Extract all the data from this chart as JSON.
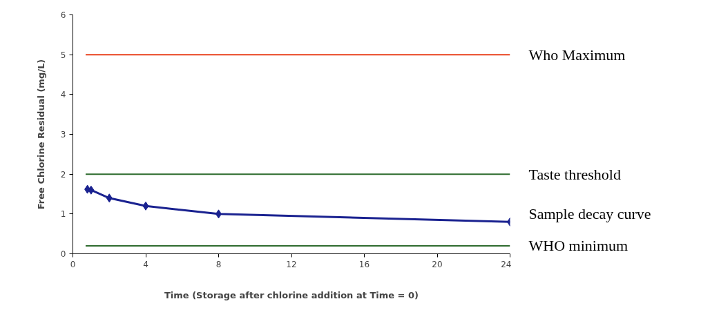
{
  "chart_data": {
    "type": "line",
    "xlabel": "Time (Storage after chlorine addition at Time = 0)",
    "ylabel": "Free Chlorine Residual (mg/L)",
    "xlim": [
      0,
      24
    ],
    "ylim": [
      0,
      6
    ],
    "xticks": [
      0,
      4,
      8,
      12,
      16,
      20,
      24
    ],
    "yticks": [
      0,
      1,
      2,
      3,
      4,
      5,
      6
    ],
    "grid": false,
    "series": [
      {
        "name": "Who Maximum",
        "color": "#e8401c",
        "x": [
          0.7,
          24
        ],
        "values": [
          5,
          5
        ],
        "marker": "none"
      },
      {
        "name": "Taste threshold",
        "color": "#2e6b2e",
        "x": [
          0.7,
          24
        ],
        "values": [
          2,
          2
        ],
        "marker": "none"
      },
      {
        "name": "Sample decay curve",
        "color": "#1a2290",
        "x": [
          0.8,
          1,
          2,
          4,
          8,
          24
        ],
        "values": [
          1.62,
          1.6,
          1.4,
          1.2,
          1.0,
          0.8
        ],
        "marker": "diamond"
      },
      {
        "name": "WHO minimum",
        "color": "#2e6b2e",
        "x": [
          0.7,
          24
        ],
        "values": [
          0.2,
          0.2
        ],
        "marker": "none"
      }
    ]
  }
}
